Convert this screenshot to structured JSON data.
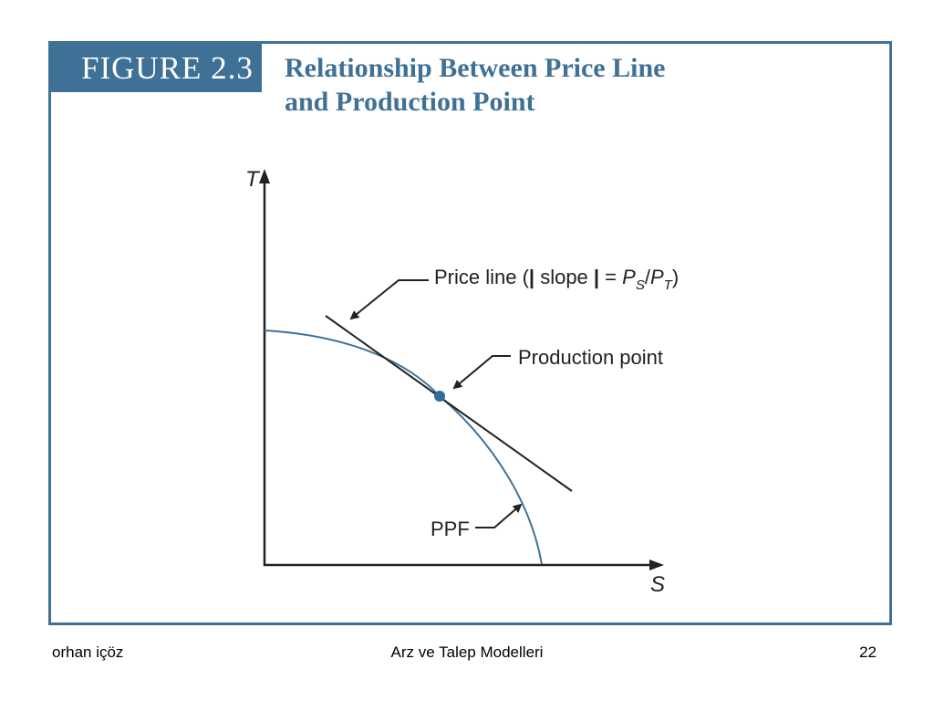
{
  "figure": {
    "number": "FIGURE 2.3",
    "title_line1": "Relationship Between Price Line",
    "title_line2": "and Production Point"
  },
  "diagram": {
    "axis_y": "T",
    "axis_x": "S",
    "price_line_label_prefix": "Price line (",
    "price_line_label_bar_left": "|",
    "price_line_label_slope": " slope ",
    "price_line_label_bar_right": "|",
    "price_line_label_eq": " = ",
    "price_line_label_ps": "P",
    "price_line_label_ps_sub": "S",
    "price_line_label_slash": "/",
    "price_line_label_pt": "P",
    "price_line_label_pt_sub": "T",
    "price_line_label_suffix": ")",
    "production_point_label": "Production point",
    "ppf_label": "PPF",
    "colors": {
      "curve": "#3f7197",
      "point": "#2e6d9e",
      "line": "#222222"
    }
  },
  "footer": {
    "author": "orhan içöz",
    "course": "Arz ve Talep Modelleri",
    "page": "22"
  }
}
